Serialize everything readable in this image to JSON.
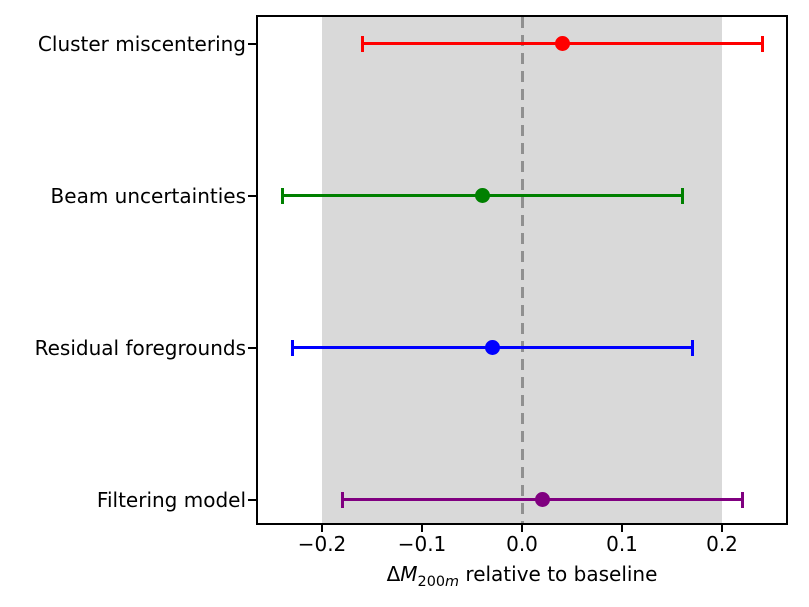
{
  "chart_data": {
    "type": "scatter",
    "subtype": "horizontal-errorbar",
    "title": "",
    "xlabel_plain": "ΔM200m relative to baseline",
    "xlabel_parts": {
      "delta": "Δ",
      "mass_symbol": "M",
      "subscript_number": "200",
      "subscript_letter": "m",
      "rest": " relative to baseline"
    },
    "xlim": [
      -0.264,
      0.264
    ],
    "xticks": [
      -0.2,
      -0.1,
      0.0,
      0.1,
      0.2
    ],
    "xtick_labels": [
      "−0.2",
      "−0.1",
      "0.0",
      "0.1",
      "0.2"
    ],
    "categories": [
      "Cluster miscentering",
      "Beam uncertainties",
      "Residual foregrounds",
      "Filtering model"
    ],
    "series": [
      {
        "name": "Cluster miscentering",
        "value": 0.04,
        "error_minus": 0.2,
        "error_plus": 0.2,
        "color": "#ff0000"
      },
      {
        "name": "Beam uncertainties",
        "value": -0.04,
        "error_minus": 0.2,
        "error_plus": 0.2,
        "color": "#008000"
      },
      {
        "name": "Residual foregrounds",
        "value": -0.03,
        "error_minus": 0.2,
        "error_plus": 0.2,
        "color": "#0000ff"
      },
      {
        "name": "Filtering model",
        "value": 0.02,
        "error_minus": 0.2,
        "error_plus": 0.2,
        "color": "#800080"
      }
    ],
    "shaded_band": {
      "from": -0.2,
      "to": 0.2,
      "color": "#d9d9d9"
    },
    "reference_line": {
      "x": 0.0,
      "style": "dashed",
      "color": "#909090"
    },
    "grid": false,
    "legend": false,
    "axis_color": "#000000",
    "background_color": "#ffffff"
  }
}
